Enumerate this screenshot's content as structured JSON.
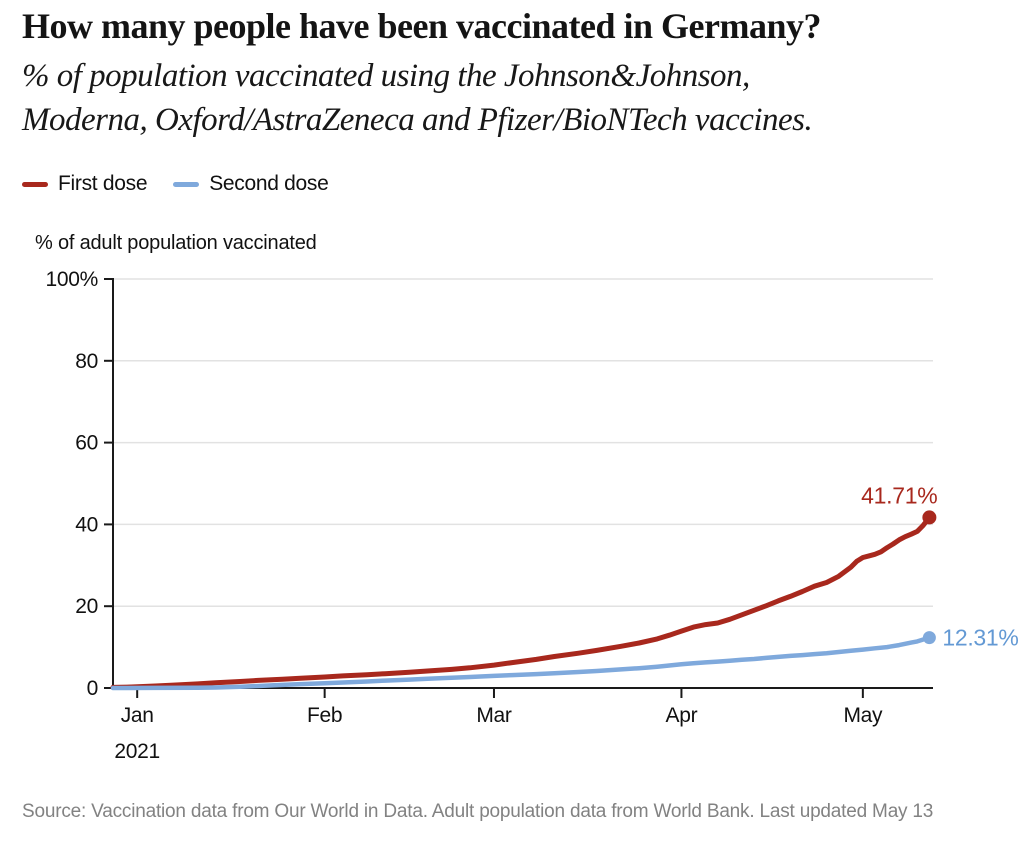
{
  "header": {
    "title": "How many people have been vaccinated in Germany?",
    "subtitle_line1": "% of population vaccinated using the Johnson&Johnson,",
    "subtitle_line2": "Moderna, Oxford/AstraZeneca and Pfizer/BioNTech vaccines."
  },
  "legend": [
    {
      "label": "First dose",
      "color": "#a8281d"
    },
    {
      "label": "Second dose",
      "color": "#7fa9dc"
    }
  ],
  "source": "Source: Vaccination data from Our World in Data. Adult population data from World Bank. Last updated May 13",
  "chart_data": {
    "type": "line",
    "title": "How many people have been vaccinated in Germany?",
    "ylabel": "% of adult population vaccinated",
    "xlabel": "",
    "year_label": "2021",
    "x_unit_note": "day index, 0 = 28 Dec 2020",
    "xlim": [
      0,
      135.6
    ],
    "ylim": [
      0,
      100
    ],
    "grid": "horizontal",
    "grid_color": "#e2e2e2",
    "axis_color": "#1a1a1a",
    "x_ticks": [
      {
        "day": 4,
        "label": "Jan"
      },
      {
        "day": 35,
        "label": "Feb"
      },
      {
        "day": 63,
        "label": "Mar"
      },
      {
        "day": 94,
        "label": "Apr"
      },
      {
        "day": 124,
        "label": "May"
      }
    ],
    "y_ticks": [
      {
        "value": 0,
        "label": "0"
      },
      {
        "value": 20,
        "label": "20"
      },
      {
        "value": 40,
        "label": "40"
      },
      {
        "value": 60,
        "label": "60"
      },
      {
        "value": 80,
        "label": "80"
      },
      {
        "value": 100,
        "label": "100%"
      }
    ],
    "series": [
      {
        "name": "First dose",
        "color": "#a8281d",
        "label_color": "#a8281d",
        "end_label": "41.71%",
        "end_value": 41.71,
        "width": 5,
        "dot_r": 7,
        "label_position": "above",
        "points": [
          [
            0,
            0.15
          ],
          [
            3,
            0.25
          ],
          [
            7,
            0.5
          ],
          [
            10,
            0.7
          ],
          [
            14,
            1.0
          ],
          [
            17,
            1.3
          ],
          [
            21,
            1.6
          ],
          [
            24,
            1.85
          ],
          [
            28,
            2.15
          ],
          [
            31,
            2.4
          ],
          [
            35,
            2.7
          ],
          [
            38,
            2.95
          ],
          [
            42,
            3.25
          ],
          [
            45,
            3.5
          ],
          [
            49,
            3.85
          ],
          [
            52,
            4.15
          ],
          [
            56,
            4.55
          ],
          [
            59,
            4.95
          ],
          [
            63,
            5.6
          ],
          [
            66,
            6.2
          ],
          [
            70,
            7.0
          ],
          [
            73,
            7.7
          ],
          [
            77,
            8.5
          ],
          [
            80,
            9.2
          ],
          [
            84,
            10.2
          ],
          [
            87,
            11.0
          ],
          [
            90,
            12.0
          ],
          [
            92,
            12.9
          ],
          [
            94,
            13.9
          ],
          [
            96,
            14.9
          ],
          [
            98,
            15.5
          ],
          [
            100,
            15.9
          ],
          [
            102,
            16.8
          ],
          [
            104,
            17.9
          ],
          [
            106,
            19.0
          ],
          [
            108,
            20.1
          ],
          [
            110,
            21.3
          ],
          [
            112,
            22.4
          ],
          [
            114,
            23.6
          ],
          [
            116,
            24.9
          ],
          [
            118,
            25.8
          ],
          [
            120,
            27.3
          ],
          [
            122,
            29.5
          ],
          [
            123,
            31.0
          ],
          [
            124,
            31.9
          ],
          [
            125,
            32.3
          ],
          [
            126,
            32.7
          ],
          [
            127,
            33.3
          ],
          [
            128,
            34.3
          ],
          [
            129,
            35.2
          ],
          [
            130,
            36.2
          ],
          [
            131,
            37.0
          ],
          [
            132,
            37.6
          ],
          [
            133,
            38.3
          ],
          [
            134,
            39.8
          ],
          [
            135,
            41.71
          ]
        ]
      },
      {
        "name": "Second dose",
        "color": "#7fa9dc",
        "label_color": "#6399d4",
        "end_label": "12.31%",
        "end_value": 12.31,
        "width": 4.5,
        "dot_r": 6.5,
        "label_position": "right",
        "points": [
          [
            0,
            0.0
          ],
          [
            7,
            0.02
          ],
          [
            14,
            0.06
          ],
          [
            17,
            0.12
          ],
          [
            21,
            0.3
          ],
          [
            24,
            0.5
          ],
          [
            28,
            0.75
          ],
          [
            31,
            0.95
          ],
          [
            35,
            1.15
          ],
          [
            38,
            1.35
          ],
          [
            42,
            1.6
          ],
          [
            45,
            1.8
          ],
          [
            49,
            2.05
          ],
          [
            52,
            2.25
          ],
          [
            56,
            2.5
          ],
          [
            59,
            2.7
          ],
          [
            63,
            2.95
          ],
          [
            66,
            3.15
          ],
          [
            70,
            3.4
          ],
          [
            73,
            3.6
          ],
          [
            77,
            3.9
          ],
          [
            80,
            4.15
          ],
          [
            84,
            4.55
          ],
          [
            87,
            4.85
          ],
          [
            90,
            5.2
          ],
          [
            92,
            5.5
          ],
          [
            94,
            5.8
          ],
          [
            96,
            6.05
          ],
          [
            98,
            6.25
          ],
          [
            100,
            6.45
          ],
          [
            102,
            6.65
          ],
          [
            104,
            6.9
          ],
          [
            106,
            7.1
          ],
          [
            108,
            7.35
          ],
          [
            110,
            7.6
          ],
          [
            112,
            7.85
          ],
          [
            114,
            8.05
          ],
          [
            116,
            8.3
          ],
          [
            118,
            8.5
          ],
          [
            120,
            8.8
          ],
          [
            122,
            9.1
          ],
          [
            124,
            9.4
          ],
          [
            126,
            9.7
          ],
          [
            128,
            10.0
          ],
          [
            130,
            10.5
          ],
          [
            131,
            10.8
          ],
          [
            132,
            11.1
          ],
          [
            133,
            11.4
          ],
          [
            134,
            11.85
          ],
          [
            135,
            12.31
          ]
        ]
      }
    ]
  }
}
